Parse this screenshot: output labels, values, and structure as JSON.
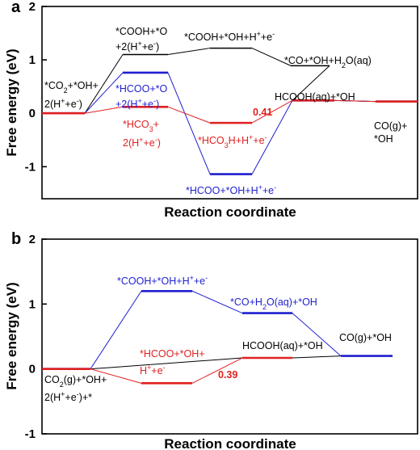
{
  "chart_data": [
    {
      "type": "line",
      "panel_label": "a",
      "xlabel": "Reaction coordinate",
      "ylabel": "Free energy (eV)",
      "ylim": [
        -1.6,
        2.0
      ],
      "yticks": [
        "-1",
        "0",
        "1",
        "2"
      ],
      "series": [
        {
          "color": "#000000",
          "levels": [
            0.0,
            1.1,
            1.22,
            0.89,
            0.24,
            0.22
          ]
        },
        {
          "color": "#1f1fd0",
          "levels": [
            0.0,
            0.76,
            -1.14,
            0.24,
            0.22
          ]
        },
        {
          "color": "#e02020",
          "levels": [
            0.0,
            0.12,
            -0.18,
            0.24,
            0.22
          ]
        }
      ],
      "annotations": [
        {
          "color": "#000000",
          "lines": [
            "*CO",
            "2",
            "+*OH+",
            "2(H",
            "+",
            "+e",
            "-",
            ")"
          ]
        },
        {
          "color": "#000000",
          "text": "*COOH+*O"
        },
        {
          "color": "#000000",
          "text": "+2(H+e)"
        },
        {
          "color": "#000000",
          "text": "*COOH+*OH+H+e"
        },
        {
          "color": "#000000",
          "text": "*CO+*OH+H2O(aq)"
        },
        {
          "color": "#000000",
          "text": "HCOOH(aq)+*OH"
        },
        {
          "color": "#000000",
          "text": "CO(g)+"
        },
        {
          "color": "#000000",
          "text": "*OH"
        },
        {
          "color": "#1f1fd0",
          "text": "*HCOO+*O"
        },
        {
          "color": "#1f1fd0",
          "text": "+2(H+e)"
        },
        {
          "color": "#1f1fd0",
          "text": "*HCOO+*OH+H+e"
        },
        {
          "color": "#e02020",
          "text": "*HCO3+"
        },
        {
          "color": "#e02020",
          "text": "2(H+e)"
        },
        {
          "color": "#e02020",
          "text": "*HCO3H+H+e"
        },
        {
          "color": "#e02020",
          "text": "0.41"
        }
      ]
    },
    {
      "type": "line",
      "panel_label": "b",
      "xlabel": "Reaction coordinate",
      "ylabel": "Free energy (eV)",
      "ylim": [
        -1.0,
        2.0
      ],
      "yticks": [
        "-1",
        "0",
        "1",
        "2"
      ],
      "series": [
        {
          "color": "#000000",
          "levels": [
            0.0,
            0.17,
            0.2
          ]
        },
        {
          "color": "#1f1fd0",
          "levels": [
            0.0,
            1.2,
            0.86,
            0.2
          ]
        },
        {
          "color": "#e02020",
          "levels": [
            0.0,
            -0.22,
            0.17
          ]
        }
      ],
      "annotations": [
        {
          "color": "#1f1fd0",
          "text": "*COOH+*OH+H+e"
        },
        {
          "color": "#1f1fd0",
          "text": "*CO+H2O(aq)+*OH"
        },
        {
          "color": "#000000",
          "text": "HCOOH(aq)+*OH"
        },
        {
          "color": "#000000",
          "text": "CO(g)+*OH"
        },
        {
          "color": "#e02020",
          "text": "*HCOO+*OH+"
        },
        {
          "color": "#e02020",
          "text": "H+e"
        },
        {
          "color": "#e02020",
          "text": "0.39"
        },
        {
          "color": "#000000",
          "text": "CO2(g)+*OH+"
        },
        {
          "color": "#000000",
          "text": "2(H+e)+*"
        }
      ]
    }
  ]
}
